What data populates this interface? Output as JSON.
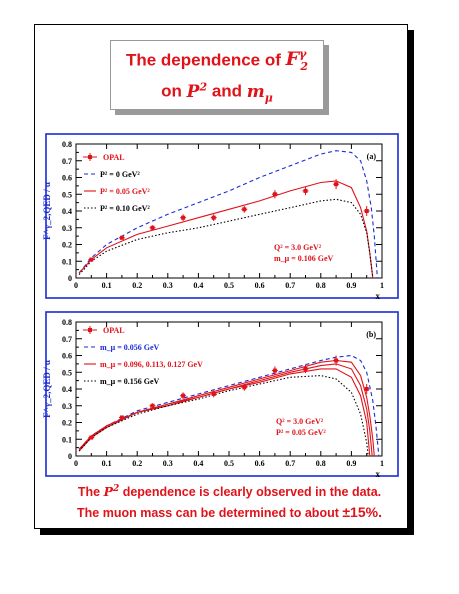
{
  "title": {
    "line1_prefix": "The dependence of ",
    "line1_symbol": "F",
    "line1_sup": "γ",
    "line1_sub": "2",
    "line2_prefix": "on ",
    "line2_p": "P",
    "line2_p_sup": "2",
    "line2_and": " and ",
    "line2_m": "m",
    "line2_m_sub": "μ"
  },
  "footer": {
    "line1_a": "The ",
    "line1_p": "P",
    "line1_sup": "2",
    "line1_b": " dependence is clearly observed in the data.",
    "line2_a": "The muon mass can be determined to about ",
    "line2_b": "±15%."
  },
  "colors": {
    "opal": "#e0121a",
    "blue": "#1a2bd6",
    "black": "#000000",
    "frame": "#1a2bd6"
  },
  "chart_data": [
    {
      "type": "line",
      "panel_label": "(a)",
      "ylabel": "F^γ_2,QED / α",
      "xlabel": "x",
      "xlim": [
        0,
        1
      ],
      "ylim": [
        0,
        0.8
      ],
      "xticks": [
        "0",
        "0.1",
        "0.2",
        "0.3",
        "0.4",
        "0.5",
        "0.6",
        "0.7",
        "0.8",
        "0.9",
        "1"
      ],
      "yticks": [
        "0",
        "0.1",
        "0.2",
        "0.3",
        "0.4",
        "0.5",
        "0.6",
        "0.7",
        "0.8"
      ],
      "annotation": [
        "Q² = 3.0 GeV²",
        "m_μ = 0.106 GeV"
      ],
      "legend_position": "top-left",
      "data_points": {
        "name": "OPAL",
        "x": [
          0.05,
          0.15,
          0.25,
          0.35,
          0.45,
          0.55,
          0.65,
          0.75,
          0.85,
          0.95
        ],
        "y": [
          0.11,
          0.24,
          0.3,
          0.36,
          0.36,
          0.41,
          0.5,
          0.52,
          0.56,
          0.4
        ],
        "err": [
          0.01,
          0.01,
          0.015,
          0.02,
          0.02,
          0.02,
          0.025,
          0.025,
          0.03,
          0.03
        ]
      },
      "series": [
        {
          "name": "P² = 0 GeV²",
          "style": "dashed",
          "color": "blue",
          "x": [
            0.01,
            0.05,
            0.1,
            0.2,
            0.3,
            0.4,
            0.5,
            0.6,
            0.7,
            0.8,
            0.85,
            0.9,
            0.93,
            0.95,
            0.965,
            0.975,
            0.985
          ],
          "y": [
            0.03,
            0.12,
            0.2,
            0.3,
            0.38,
            0.45,
            0.52,
            0.6,
            0.67,
            0.74,
            0.76,
            0.75,
            0.7,
            0.58,
            0.42,
            0.25,
            0.0
          ]
        },
        {
          "name": "P² = 0.05 GeV²",
          "style": "solid",
          "color": "red",
          "x": [
            0.01,
            0.05,
            0.1,
            0.2,
            0.3,
            0.4,
            0.5,
            0.6,
            0.7,
            0.8,
            0.85,
            0.9,
            0.93,
            0.95,
            0.96,
            0.97
          ],
          "y": [
            0.03,
            0.11,
            0.18,
            0.26,
            0.31,
            0.36,
            0.41,
            0.46,
            0.52,
            0.57,
            0.58,
            0.54,
            0.42,
            0.28,
            0.15,
            0.0
          ]
        },
        {
          "name": "P² = 0.10 GeV²",
          "style": "dotted",
          "color": "black",
          "x": [
            0.01,
            0.05,
            0.1,
            0.2,
            0.3,
            0.4,
            0.5,
            0.6,
            0.7,
            0.8,
            0.85,
            0.9,
            0.93,
            0.95,
            0.96,
            0.97
          ],
          "y": [
            0.02,
            0.1,
            0.16,
            0.23,
            0.27,
            0.3,
            0.34,
            0.38,
            0.42,
            0.46,
            0.47,
            0.45,
            0.38,
            0.27,
            0.15,
            0.0
          ]
        }
      ]
    },
    {
      "type": "line",
      "panel_label": "(b)",
      "ylabel": "F^γ_2,QED / α",
      "xlabel": "x",
      "xlim": [
        0,
        1
      ],
      "ylim": [
        0,
        0.8
      ],
      "xticks": [
        "0",
        "0.1",
        "0.2",
        "0.3",
        "0.4",
        "0.5",
        "0.6",
        "0.7",
        "0.8",
        "0.9",
        "1"
      ],
      "yticks": [
        "0",
        "0.1",
        "0.2",
        "0.3",
        "0.4",
        "0.5",
        "0.6",
        "0.7",
        "0.8"
      ],
      "annotation": [
        "Q² = 3.0 GeV²",
        "P² = 0.05 GeV²"
      ],
      "legend_position": "top-left",
      "data_points": {
        "name": "OPAL",
        "x": [
          0.05,
          0.15,
          0.25,
          0.35,
          0.45,
          0.55,
          0.65,
          0.75,
          0.85,
          0.95
        ],
        "y": [
          0.11,
          0.23,
          0.3,
          0.36,
          0.37,
          0.41,
          0.51,
          0.52,
          0.57,
          0.4
        ],
        "err": [
          0.01,
          0.01,
          0.015,
          0.02,
          0.02,
          0.02,
          0.025,
          0.025,
          0.03,
          0.03
        ]
      },
      "series": [
        {
          "name": "m_μ = 0.056 GeV",
          "style": "dashed",
          "color": "blue",
          "x": [
            0.01,
            0.05,
            0.1,
            0.2,
            0.3,
            0.4,
            0.5,
            0.6,
            0.7,
            0.8,
            0.85,
            0.9,
            0.93,
            0.95,
            0.97,
            0.98,
            0.99
          ],
          "y": [
            0.04,
            0.12,
            0.18,
            0.27,
            0.32,
            0.37,
            0.42,
            0.47,
            0.52,
            0.57,
            0.59,
            0.6,
            0.57,
            0.5,
            0.33,
            0.18,
            0.0
          ]
        },
        {
          "name": "m_μ = 0.096 GeV",
          "style": "solid",
          "color": "red",
          "x": [
            0.01,
            0.05,
            0.1,
            0.2,
            0.3,
            0.4,
            0.5,
            0.6,
            0.7,
            0.8,
            0.85,
            0.9,
            0.93,
            0.95,
            0.96,
            0.97,
            0.975
          ],
          "y": [
            0.04,
            0.12,
            0.18,
            0.26,
            0.31,
            0.36,
            0.41,
            0.46,
            0.51,
            0.56,
            0.57,
            0.56,
            0.48,
            0.35,
            0.24,
            0.1,
            0.0
          ]
        },
        {
          "name": "m_μ = 0.113 GeV",
          "style": "solid",
          "color": "red",
          "x": [
            0.01,
            0.05,
            0.1,
            0.2,
            0.3,
            0.4,
            0.5,
            0.6,
            0.7,
            0.8,
            0.85,
            0.9,
            0.93,
            0.95,
            0.96,
            0.968
          ],
          "y": [
            0.04,
            0.11,
            0.18,
            0.26,
            0.31,
            0.35,
            0.4,
            0.45,
            0.5,
            0.54,
            0.55,
            0.52,
            0.42,
            0.28,
            0.15,
            0.0
          ]
        },
        {
          "name": "m_μ = 0.127 GeV",
          "style": "solid",
          "color": "red",
          "x": [
            0.01,
            0.05,
            0.1,
            0.2,
            0.3,
            0.4,
            0.5,
            0.6,
            0.7,
            0.8,
            0.85,
            0.9,
            0.93,
            0.95,
            0.96
          ],
          "y": [
            0.03,
            0.11,
            0.17,
            0.26,
            0.3,
            0.35,
            0.4,
            0.44,
            0.49,
            0.52,
            0.52,
            0.47,
            0.36,
            0.2,
            0.0
          ]
        },
        {
          "name": "m_μ = 0.156 GeV",
          "style": "dotted",
          "color": "black",
          "x": [
            0.01,
            0.05,
            0.1,
            0.2,
            0.3,
            0.4,
            0.5,
            0.6,
            0.7,
            0.8,
            0.85,
            0.9,
            0.93,
            0.95,
            0.955
          ],
          "y": [
            0.03,
            0.11,
            0.17,
            0.25,
            0.3,
            0.34,
            0.39,
            0.43,
            0.47,
            0.48,
            0.46,
            0.38,
            0.25,
            0.08,
            0.0
          ]
        }
      ],
      "legend_entries": [
        "OPAL",
        "m_μ = 0.056 GeV",
        "m_μ = 0.096, 0.113, 0.127 GeV",
        "m_μ = 0.156 GeV"
      ]
    }
  ],
  "legend_a": [
    "OPAL",
    "P² = ",
    "0 GeV²",
    "P² = 0.05 GeV²",
    "P² = 0.10 GeV²"
  ],
  "legend_b": [
    "OPAL",
    "m_μ = 0.056 GeV",
    "m_μ = 0.096, 0.113, 0.127 GeV",
    "m_μ = 0.156 GeV"
  ]
}
